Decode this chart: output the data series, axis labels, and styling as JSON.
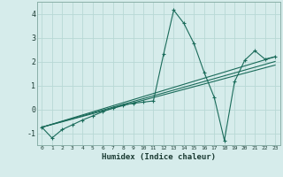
{
  "bg_color": "#d6eceb",
  "grid_color": "#b8d8d5",
  "line_color": "#1a6b5a",
  "marker_color": "#1a6b5a",
  "xlabel": "Humidex (Indice chaleur)",
  "xlim": [
    -0.5,
    23.5
  ],
  "ylim": [
    -1.5,
    4.5
  ],
  "yticks": [
    -1,
    0,
    1,
    2,
    3,
    4
  ],
  "xticks": [
    0,
    1,
    2,
    3,
    4,
    5,
    6,
    7,
    8,
    9,
    10,
    11,
    12,
    13,
    14,
    15,
    16,
    17,
    18,
    19,
    20,
    21,
    22,
    23
  ],
  "main_x": [
    0,
    1,
    2,
    3,
    4,
    5,
    6,
    7,
    8,
    9,
    10,
    11,
    12,
    13,
    14,
    15,
    16,
    17,
    18,
    19,
    20,
    21,
    22,
    23
  ],
  "main_y": [
    -0.75,
    -1.2,
    -0.85,
    -0.65,
    -0.45,
    -0.28,
    -0.1,
    0.05,
    0.18,
    0.25,
    0.3,
    0.35,
    2.3,
    4.15,
    3.6,
    2.75,
    1.55,
    0.5,
    -1.3,
    1.15,
    2.05,
    2.45,
    2.1,
    2.2
  ],
  "trend_lines": [
    {
      "x": [
        0,
        23
      ],
      "y": [
        -0.75,
        2.2
      ]
    },
    {
      "x": [
        0,
        23
      ],
      "y": [
        -0.75,
        2.0
      ]
    },
    {
      "x": [
        0,
        23
      ],
      "y": [
        -0.75,
        1.85
      ]
    }
  ]
}
